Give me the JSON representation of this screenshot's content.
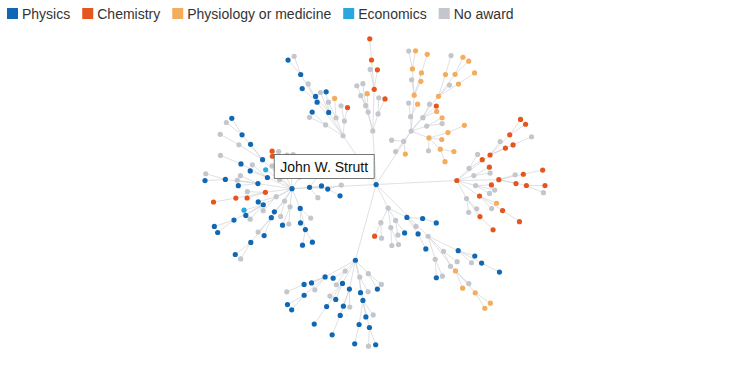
{
  "chart_data": {
    "type": "network",
    "series": [
      {
        "name": "Physics",
        "color": "#1067b3"
      },
      {
        "name": "Chemistry",
        "color": "#e4561d"
      },
      {
        "name": "Physiology or medicine",
        "color": "#f4ad5c"
      },
      {
        "name": "Economics",
        "color": "#2aa7dc"
      },
      {
        "name": "No award",
        "color": "#c3c6cc"
      }
    ],
    "nodes": {
      "award": [
        0,
        0,
        4,
        4,
        0,
        4,
        4,
        1,
        4,
        0,
        0,
        4,
        0,
        4,
        0,
        1,
        4,
        0,
        4,
        0,
        4,
        0,
        4,
        1,
        4,
        2,
        4,
        2,
        4,
        4,
        2,
        1,
        4,
        1,
        4,
        1,
        4,
        4,
        0,
        4,
        0,
        0,
        4,
        0,
        4,
        4,
        0,
        4,
        4,
        0,
        4,
        4,
        0,
        4,
        4,
        1,
        4,
        4,
        4,
        0,
        4,
        2,
        0,
        4,
        0,
        4,
        0,
        0,
        4,
        4,
        0,
        0,
        4,
        0,
        0,
        4,
        4,
        0,
        4,
        0,
        1,
        4,
        1,
        4,
        0,
        0,
        3,
        4,
        0,
        4,
        0,
        0,
        4,
        0,
        4,
        3,
        0,
        0,
        4,
        4,
        0,
        1,
        4,
        1,
        4,
        2,
        4,
        2,
        2,
        4,
        2,
        4,
        2,
        2,
        4,
        2,
        2,
        4,
        2,
        1,
        2,
        4,
        2,
        2,
        4,
        2,
        1,
        4,
        1,
        1,
        4,
        1,
        4,
        1,
        1,
        4,
        1,
        4,
        1,
        1,
        4,
        2,
        4,
        1,
        1,
        4,
        4,
        0,
        0,
        4,
        0,
        4,
        0,
        0,
        4,
        0,
        0,
        0,
        4,
        0,
        4,
        0,
        0,
        4,
        0,
        4,
        0,
        4,
        1,
        0,
        4,
        0,
        4,
        2,
        4,
        0,
        0,
        0,
        4,
        4,
        0,
        4,
        1,
        0,
        4,
        0,
        4,
        4,
        4,
        1,
        1,
        1,
        4,
        4,
        2,
        4,
        4,
        4,
        0,
        0,
        4,
        0,
        4,
        4,
        2,
        2,
        4,
        0,
        4,
        0,
        0,
        0,
        4,
        0,
        0,
        4,
        1,
        0,
        0,
        4,
        0,
        4,
        2,
        2,
        4,
        2,
        2,
        2,
        2,
        4,
        2,
        1,
        4,
        1,
        1,
        1,
        4,
        1,
        0,
        4,
        0,
        0,
        0,
        4,
        0,
        0,
        4,
        0,
        1,
        2,
        2,
        0,
        0,
        4,
        2,
        1,
        0
      ],
      "advisor": [
        null,
        0,
        0,
        0,
        0,
        0,
        0,
        0,
        0,
        1,
        1,
        1,
        1,
        1,
        1,
        1,
        1,
        1,
        1,
        1,
        1,
        1,
        1,
        1,
        2,
        2,
        2,
        2,
        2,
        2,
        2,
        7,
        7,
        7,
        7,
        7,
        7,
        7,
        4,
        4,
        4,
        4,
        4,
        4,
        4,
        3,
        3,
        3,
        3,
        3,
        5,
        5,
        5,
        5,
        6,
        6,
        6,
        6,
        8,
        8,
        8,
        8,
        9,
        9,
        9,
        9,
        10,
        10,
        10,
        11,
        11,
        12,
        12,
        12,
        12,
        13,
        13,
        14,
        14,
        14,
        15,
        15,
        15,
        16,
        16,
        17,
        17,
        17,
        17,
        18,
        18,
        19,
        19,
        19,
        20,
        20,
        21,
        21,
        21,
        22,
        22,
        23,
        23,
        23,
        24,
        24,
        24,
        25,
        25,
        25,
        25,
        26,
        26,
        27,
        27,
        27,
        27,
        28,
        28,
        28,
        29,
        29,
        30,
        30,
        30,
        30,
        31,
        31,
        31,
        31,
        32,
        32,
        32,
        33,
        33,
        33,
        33,
        34,
        34,
        35,
        35,
        35,
        36,
        36,
        37,
        37,
        37,
        38,
        38,
        38,
        38,
        39,
        39,
        40,
        40,
        40,
        41,
        41,
        41,
        41,
        42,
        42,
        43,
        43,
        43,
        44,
        44,
        45,
        45,
        46,
        46,
        46,
        47,
        47,
        48,
        48,
        49,
        49,
        49,
        50,
        50,
        51,
        51,
        52,
        52,
        52,
        53,
        53,
        54,
        54,
        55,
        55,
        55,
        56,
        56,
        57,
        57,
        58,
        58,
        59,
        59,
        59,
        60,
        60,
        61,
        61,
        61,
        62,
        62,
        66,
        66,
        71,
        73,
        73,
        77,
        77,
        80,
        85,
        85,
        91,
        96,
        96,
        107,
        107,
        108,
        113,
        113,
        115,
        122,
        122,
        123,
        126,
        126,
        128,
        133,
        133,
        134,
        131,
        147,
        147,
        150,
        156,
        156,
        157,
        162,
        169,
        169,
        183,
        190,
        204,
        204,
        199,
        153,
        98,
        110,
        139,
        185
      ]
    },
    "annotations": [
      {
        "node": 0,
        "text": "John W. Strutt"
      }
    ]
  }
}
